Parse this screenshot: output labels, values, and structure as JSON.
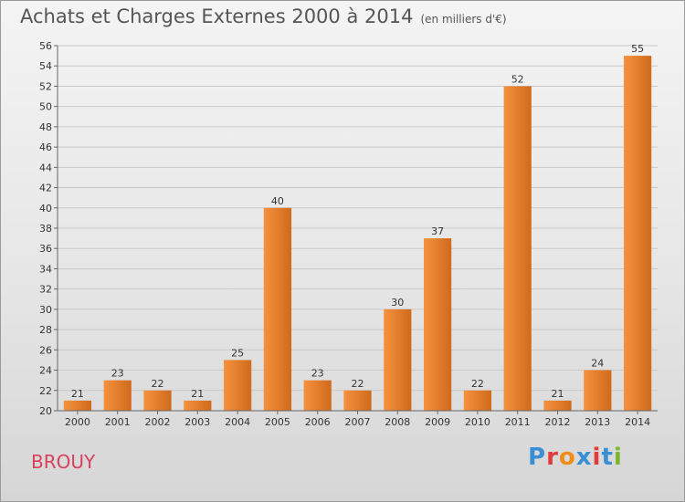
{
  "chart_data": {
    "type": "bar",
    "title": "Achats et Charges Externes 2000 à 2014",
    "subtitle": "(en milliers d'€)",
    "categories": [
      "2000",
      "2001",
      "2002",
      "2003",
      "2004",
      "2005",
      "2006",
      "2007",
      "2008",
      "2009",
      "2010",
      "2011",
      "2012",
      "2013",
      "2014"
    ],
    "values": [
      21,
      23,
      22,
      21,
      25,
      40,
      23,
      22,
      30,
      37,
      22,
      52,
      21,
      24,
      55
    ],
    "ylim": [
      20,
      56
    ],
    "yticks": [
      20,
      22,
      24,
      26,
      28,
      30,
      32,
      34,
      36,
      38,
      40,
      42,
      44,
      46,
      48,
      50,
      52,
      54,
      56
    ],
    "grid": true,
    "bar_color": "#f5923e",
    "bar_color_dark": "#d06a1c"
  },
  "footer": {
    "commune": "BROUY",
    "logo": [
      "P",
      "r",
      "o",
      "x",
      "i",
      "t",
      "i"
    ],
    "logo_colors": [
      "#3a8fd4",
      "#e23a3a",
      "#f08c1c",
      "#3a8fd4",
      "#e23a3a",
      "#3a8fd4",
      "#7ab82b"
    ]
  }
}
